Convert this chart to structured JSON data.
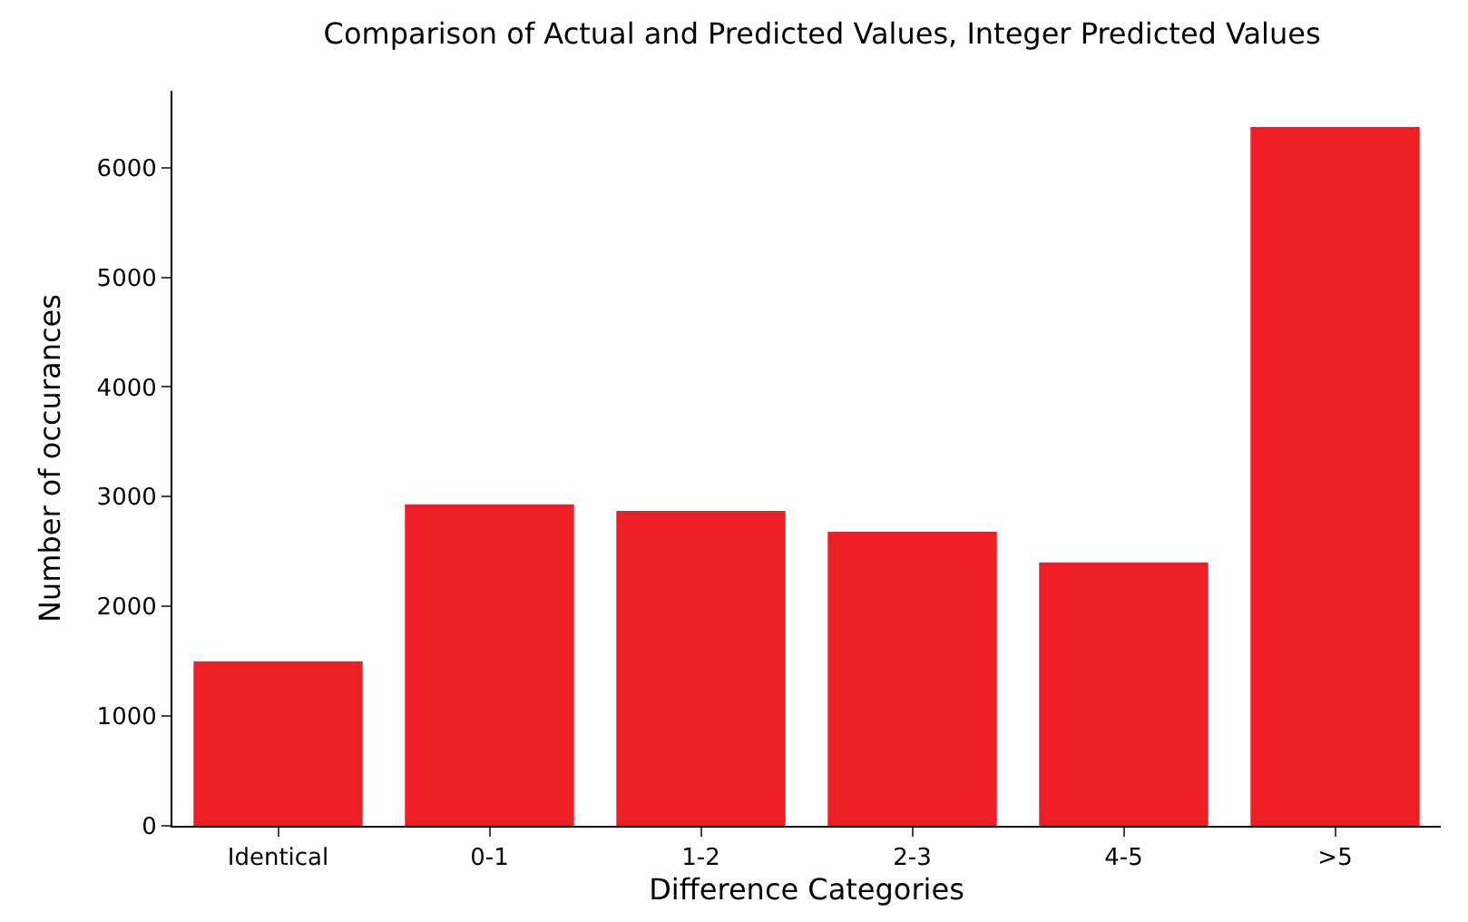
{
  "chart_data": {
    "type": "bar",
    "title": "Comparison of Actual and Predicted Values, Integer Predicted Values",
    "xlabel": "Difference Categories",
    "ylabel": "Number of occurances",
    "categories": [
      "Identical",
      "0-1",
      "1-2",
      "2-3",
      "4-5",
      ">5"
    ],
    "values": [
      1500,
      2930,
      2870,
      2680,
      2400,
      6370
    ],
    "color": "#ee1f24",
    "ylim": [
      0,
      6700
    ],
    "yticks": [
      0,
      1000,
      2000,
      3000,
      4000,
      5000,
      6000
    ]
  }
}
